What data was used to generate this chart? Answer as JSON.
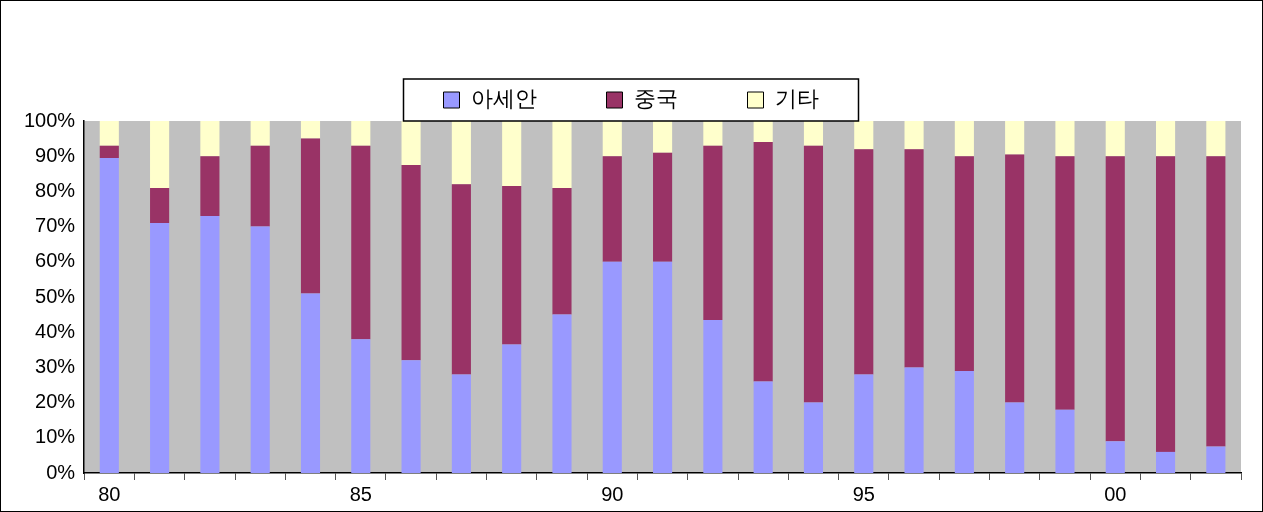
{
  "chart_data": {
    "type": "bar",
    "stacked": true,
    "categories": [
      "80",
      null,
      null,
      null,
      null,
      "85",
      null,
      null,
      null,
      null,
      "90",
      null,
      null,
      null,
      null,
      "95",
      null,
      null,
      null,
      null,
      "00",
      null,
      null
    ],
    "series": [
      {
        "name": "아세안",
        "color": "#9999ff",
        "values": [
          89.5,
          71,
          73,
          70,
          51,
          38,
          32,
          28,
          36.5,
          45,
          60,
          60,
          43.5,
          26,
          20,
          28,
          30,
          29,
          20,
          18,
          9,
          6,
          7.5
        ]
      },
      {
        "name": "중국",
        "color": "#993366",
        "values": [
          3.5,
          10,
          17,
          23,
          44,
          55,
          55.5,
          54,
          45,
          36,
          30,
          31,
          49.5,
          68,
          73,
          64,
          62,
          61,
          70.5,
          72,
          81,
          84,
          82.5
        ]
      },
      {
        "name": "기타",
        "color": "#ffffcc",
        "values": [
          7,
          19,
          10,
          7,
          5,
          7,
          12.5,
          18,
          18.5,
          19,
          10,
          9,
          7,
          6,
          7,
          8,
          8,
          10,
          9.5,
          10,
          10,
          10,
          10
        ]
      }
    ],
    "ylim": [
      0,
      100
    ],
    "yticks": [
      {
        "value": 0,
        "label": "0%"
      },
      {
        "value": 10,
        "label": "10%"
      },
      {
        "value": 20,
        "label": "20%"
      },
      {
        "value": 30,
        "label": "30%"
      },
      {
        "value": 40,
        "label": "40%"
      },
      {
        "value": 50,
        "label": "50%"
      },
      {
        "value": 60,
        "label": "60%"
      },
      {
        "value": 70,
        "label": "70%"
      },
      {
        "value": 80,
        "label": "80%"
      },
      {
        "value": 90,
        "label": "90%"
      },
      {
        "value": 100,
        "label": "100%"
      }
    ],
    "grid": false,
    "legend": "top"
  }
}
